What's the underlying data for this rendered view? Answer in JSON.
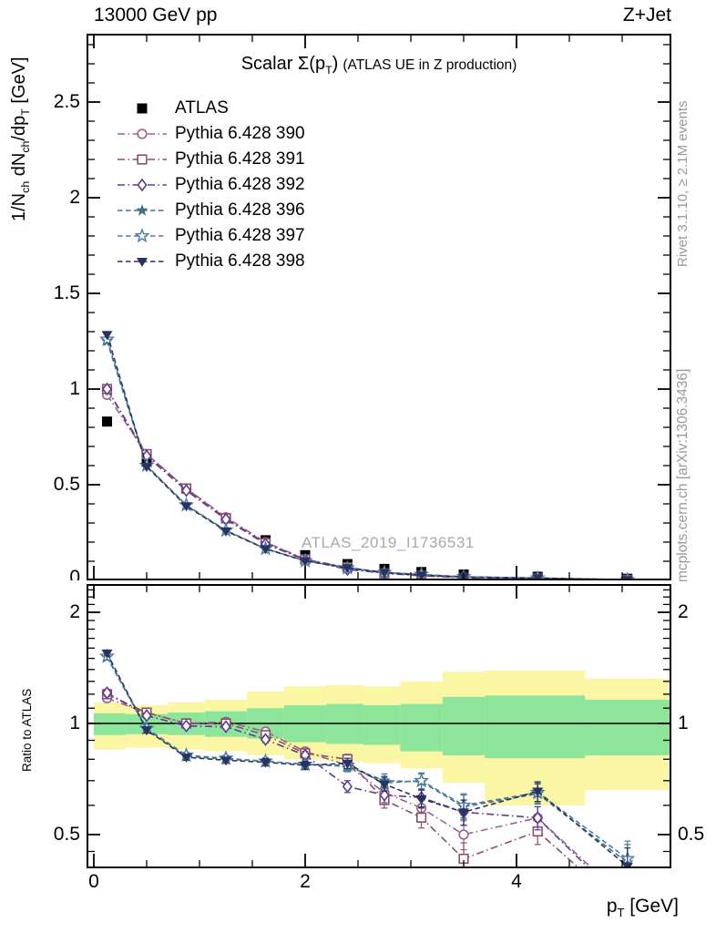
{
  "header": {
    "left": "13000 GeV pp",
    "right": "Z+Jet"
  },
  "labels": {
    "title_big_pre": "Scalar Σ(p",
    "title_big_sub": "T",
    "title_big_post": ")",
    "title_small": "(ATLAS UE in Z production)",
    "y_main_p1": "1/N",
    "y_main_s1": "ch",
    "y_main_p2": " dN",
    "y_main_s2": "ch",
    "y_main_p3": "/dp",
    "y_main_s3": "T",
    "y_main_p4": " [GeV]",
    "ratio_y": "Ratio to ATLAS",
    "x_p1": "p",
    "x_s1": "T",
    "x_p2": " [GeV]"
  },
  "side_notes": {
    "rivet": "Rivet 3.1.10, ≥ 2.1M events",
    "mcplots": "mcplots.cern.ch [arXiv:1306.3436]"
  },
  "watermark": "ATLAS_2019_I1736531",
  "legend": [
    {
      "label": "ATLAS",
      "marker": "square-filled",
      "color": "#000000",
      "line": "none"
    },
    {
      "label": "Pythia 6.428 390",
      "marker": "circle-open",
      "color": "#9A6092",
      "line": "dashdot"
    },
    {
      "label": "Pythia 6.428 391",
      "marker": "square-open",
      "color": "#8E4F66",
      "line": "dashdot"
    },
    {
      "label": "Pythia 6.428 392",
      "marker": "diamond-open",
      "color": "#5B3B93",
      "line": "dashdot"
    },
    {
      "label": "Pythia 6.428 396",
      "marker": "star-filled",
      "color": "#3E7386",
      "line": "dashed"
    },
    {
      "label": "Pythia 6.428 397",
      "marker": "star-open",
      "color": "#4B7CA0",
      "line": "dashed"
    },
    {
      "label": "Pythia 6.428 398",
      "marker": "triangle-down-filled",
      "color": "#29335F",
      "line": "dashed"
    }
  ],
  "colors": {
    "band_green": "#8DE59C",
    "band_yellow": "#FBF6A3",
    "watermark": "#A9A9A9",
    "note": "#999999",
    "axis": "#000000"
  },
  "chart_data": {
    "type": "line",
    "title": "Scalar Σ(p_T) (ATLAS UE in Z production)",
    "xlabel": "p_T [GeV]",
    "ylabel": "1/N_ch dN_ch/dp_T [GeV]",
    "x": [
      0.125,
      0.5,
      0.875,
      1.25,
      1.625,
      2.0,
      2.4,
      2.75,
      3.1,
      3.5,
      4.2,
      5.05
    ],
    "xlim": [
      -0.07,
      5.46
    ],
    "xticks": [
      0,
      2,
      4
    ],
    "xtick_labels": [
      "0",
      "2",
      "4"
    ],
    "x_minor_step": 0.5,
    "main": {
      "ylim": [
        0,
        2.857
      ],
      "yticks": [
        0,
        0.5,
        1,
        1.5,
        2,
        2.5
      ],
      "ytick_labels": [
        "0",
        "0.5",
        "1",
        "1.5",
        "2",
        "2.5"
      ],
      "y_minor_step": 0.1,
      "atlas_values": [
        0.83,
        0.62,
        0.48,
        0.325,
        0.21,
        0.132,
        0.085,
        0.06,
        0.044,
        0.031,
        0.019,
        0.0085
      ],
      "series": [
        {
          "name": "Pythia 6.428 390",
          "values": [
            0.97,
            0.66,
            0.48,
            0.33,
            0.2,
            0.111,
            0.065,
            0.039,
            0.026,
            0.0155,
            0.0105,
            0.0028
          ]
        },
        {
          "name": "Pythia 6.428 391",
          "values": [
            1.0,
            0.66,
            0.48,
            0.325,
            0.195,
            0.11,
            0.068,
            0.037,
            0.024,
            0.0133,
            0.0097,
            0.0026
          ]
        },
        {
          "name": "Pythia 6.428 392",
          "values": [
            1.0,
            0.65,
            0.47,
            0.319,
            0.19,
            0.108,
            0.057,
            0.038,
            0.028,
            0.0178,
            0.0105,
            0.0027
          ]
        },
        {
          "name": "Pythia 6.428 396",
          "values": [
            1.25,
            0.598,
            0.391,
            0.26,
            0.166,
            0.102,
            0.065,
            0.042,
            0.0306,
            0.0184,
            0.0123,
            0.0036
          ]
        },
        {
          "name": "Pythia 6.428 397",
          "values": [
            1.26,
            0.601,
            0.394,
            0.262,
            0.166,
            0.102,
            0.065,
            0.041,
            0.0308,
            0.0186,
            0.0124,
            0.0037
          ]
        },
        {
          "name": "Pythia 6.428 398",
          "values": [
            1.285,
            0.595,
            0.389,
            0.258,
            0.165,
            0.102,
            0.066,
            0.041,
            0.0275,
            0.0178,
            0.0124,
            0.0035
          ]
        }
      ]
    },
    "ratio": {
      "yscale": "log2",
      "ylim": [
        0.405,
        2.38
      ],
      "yticks": [
        0.5,
        1,
        2
      ],
      "ytick_labels": [
        "0.5",
        "1",
        "2"
      ],
      "y_minor_ticks": [
        0.45,
        0.6,
        0.7,
        0.8,
        0.9,
        1.1,
        1.2,
        1.3,
        1.4,
        1.5,
        1.6,
        1.7,
        1.8,
        1.9,
        2.1,
        2.2,
        2.3
      ],
      "reference_line": 1.0,
      "err": [
        0.025,
        0.018,
        0.015,
        0.015,
        0.018,
        0.02,
        0.025,
        0.03,
        0.035,
        0.045,
        0.04,
        0.05
      ],
      "series": [
        {
          "name": "Pythia 6.428 390",
          "values": [
            1.17,
            1.07,
            1.0,
            1.01,
            0.95,
            0.84,
            0.77,
            0.65,
            0.59,
            0.5,
            0.555,
            0.33
          ]
        },
        {
          "name": "Pythia 6.428 391",
          "values": [
            1.2,
            1.07,
            1.0,
            1.0,
            0.93,
            0.83,
            0.8,
            0.62,
            0.556,
            0.43,
            0.51,
            0.31
          ]
        },
        {
          "name": "Pythia 6.428 392",
          "values": [
            1.21,
            1.05,
            0.985,
            0.98,
            0.905,
            0.82,
            0.675,
            0.64,
            0.63,
            0.575,
            0.555,
            0.32
          ]
        },
        {
          "name": "Pythia 6.428 396",
          "values": [
            1.51,
            0.965,
            0.815,
            0.8,
            0.79,
            0.775,
            0.765,
            0.7,
            0.695,
            0.595,
            0.645,
            0.42
          ]
        },
        {
          "name": "Pythia 6.428 397",
          "values": [
            1.52,
            0.97,
            0.82,
            0.805,
            0.79,
            0.775,
            0.77,
            0.69,
            0.7,
            0.6,
            0.65,
            0.43
          ]
        },
        {
          "name": "Pythia 6.428 398",
          "values": [
            1.55,
            0.96,
            0.81,
            0.795,
            0.785,
            0.77,
            0.78,
            0.685,
            0.625,
            0.575,
            0.655,
            0.41
          ]
        }
      ],
      "bands": [
        {
          "x0": 0.0,
          "x1": 0.3,
          "g": [
            0.93,
            1.065
          ],
          "y": [
            0.85,
            1.14
          ]
        },
        {
          "x0": 0.3,
          "x1": 0.7,
          "g": [
            0.935,
            1.06
          ],
          "y": [
            0.86,
            1.12
          ]
        },
        {
          "x0": 0.7,
          "x1": 1.05,
          "g": [
            0.93,
            1.07
          ],
          "y": [
            0.85,
            1.14
          ]
        },
        {
          "x0": 1.05,
          "x1": 1.45,
          "g": [
            0.92,
            1.08
          ],
          "y": [
            0.84,
            1.16
          ]
        },
        {
          "x0": 1.45,
          "x1": 1.8,
          "g": [
            0.91,
            1.1
          ],
          "y": [
            0.82,
            1.22
          ]
        },
        {
          "x0": 1.8,
          "x1": 2.2,
          "g": [
            0.89,
            1.12
          ],
          "y": [
            0.8,
            1.26
          ]
        },
        {
          "x0": 2.2,
          "x1": 2.55,
          "g": [
            0.88,
            1.13
          ],
          "y": [
            0.79,
            1.27
          ]
        },
        {
          "x0": 2.55,
          "x1": 2.9,
          "g": [
            0.875,
            1.12
          ],
          "y": [
            0.78,
            1.26
          ]
        },
        {
          "x0": 2.9,
          "x1": 3.3,
          "g": [
            0.84,
            1.13
          ],
          "y": [
            0.755,
            1.3
          ]
        },
        {
          "x0": 3.3,
          "x1": 3.7,
          "g": [
            0.82,
            1.18
          ],
          "y": [
            0.69,
            1.38
          ]
        },
        {
          "x0": 3.7,
          "x1": 4.65,
          "g": [
            0.805,
            1.19
          ],
          "y": [
            0.6,
            1.39
          ]
        },
        {
          "x0": 4.65,
          "x1": 5.46,
          "g": [
            0.82,
            1.16
          ],
          "y": [
            0.66,
            1.32
          ]
        }
      ]
    }
  }
}
